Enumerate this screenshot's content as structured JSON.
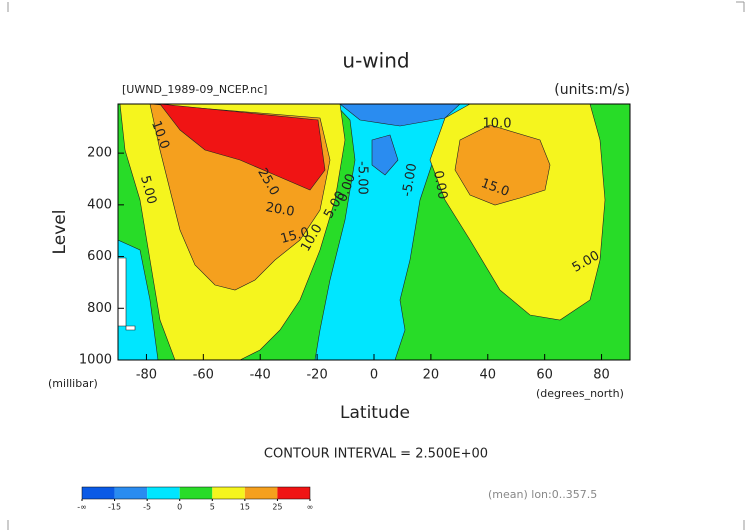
{
  "chart_data": {
    "type": "contour",
    "title": "u-wind",
    "subtitle": "[UWND_1989-09_NCEP.nc]",
    "units": "(units:m/s)",
    "ylabel": "Level",
    "yunits": "(millibar)",
    "xlabel": "Latitude",
    "xunits": "(degrees_north)",
    "contour_interval": "CONTOUR INTERVAL = 2.500E+00",
    "footnote": "(mean) lon:0..357.5",
    "xlim": [
      -90,
      90
    ],
    "xticks": [
      -80,
      -60,
      -40,
      -20,
      0,
      20,
      40,
      60,
      80
    ],
    "ylim": [
      1000,
      10
    ],
    "yticks": [
      200,
      400,
      600,
      800,
      1000
    ],
    "contour_labels": [
      "10.0",
      "5.00",
      "20.0",
      "25.0",
      "15.0",
      "10.0",
      "5.00",
      "0.00",
      "-5.00",
      "-5.00",
      "0.00",
      "10.0",
      "15.0",
      "5.00"
    ],
    "colorbar": {
      "colors": [
        "#0a5ae6",
        "#2a8cf0",
        "#00e6ff",
        "#28dc28",
        "#f5f51e",
        "#f5a01e",
        "#f01414"
      ],
      "ticks": [
        {
          "value": -20,
          "label": "-∞"
        },
        -15,
        -5,
        0,
        5,
        15,
        25,
        {
          "value": 30,
          "label": "∞"
        }
      ]
    }
  }
}
